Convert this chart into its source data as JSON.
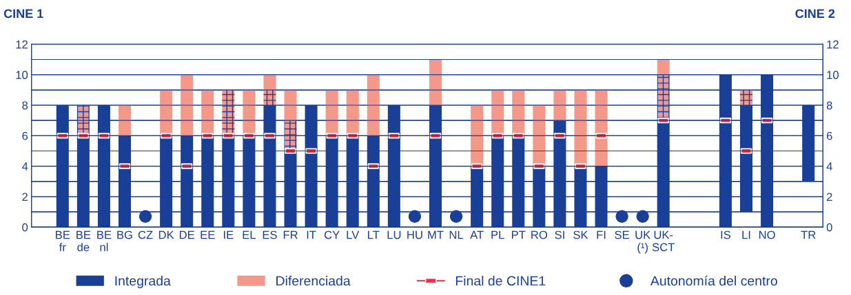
{
  "chart_data": {
    "type": "bar",
    "stacked": true,
    "ylabel": "CINE 1",
    "y2label": "CINE 2",
    "categories": [
      "BE\nfr",
      "BE\nde",
      "BE\nnl",
      "BG",
      "CZ",
      "DK",
      "DE",
      "EE",
      "IE",
      "EL",
      "ES",
      "FR",
      "IT",
      "CY",
      "LV",
      "LT",
      "LU",
      "HU",
      "MT",
      "NL",
      "AT",
      "PL",
      "PT",
      "RO",
      "SI",
      "SK",
      "FI",
      "SE",
      "UK\n(¹)",
      "UK-\nSCT",
      null,
      null,
      "IS",
      "LI",
      "NO",
      null,
      "TR"
    ],
    "series": [
      {
        "name": "Integrada",
        "color": "#1a3f96",
        "base": [
          0,
          0,
          0,
          0,
          null,
          0,
          0,
          0,
          0,
          0,
          0,
          0,
          0,
          0,
          0,
          0,
          0,
          null,
          0,
          null,
          0,
          0,
          0,
          0,
          0,
          0,
          0,
          null,
          null,
          0,
          null,
          null,
          0,
          1,
          0,
          null,
          3
        ],
        "values": [
          8,
          6,
          8,
          6,
          null,
          6,
          6,
          6,
          6,
          6,
          8,
          5,
          8,
          6,
          6,
          6,
          8,
          null,
          8,
          null,
          4,
          6,
          6,
          4,
          7,
          4,
          4,
          null,
          null,
          7,
          null,
          null,
          10,
          7,
          10,
          null,
          5
        ]
      },
      {
        "color": "#f4998a",
        "values": [
          null,
          2,
          null,
          null,
          null,
          null,
          null,
          null,
          3,
          null,
          1,
          2,
          null,
          null,
          null,
          null,
          null,
          null,
          null,
          null,
          null,
          null,
          null,
          null,
          null,
          null,
          null,
          null,
          null,
          3,
          null,
          null,
          null,
          1,
          null,
          null,
          null
        ]
      },
      {
        "name": "Diferenciada",
        "color": "#f4998a",
        "values": [
          null,
          null,
          null,
          2,
          null,
          3,
          4,
          3,
          null,
          3,
          1,
          2,
          null,
          3,
          3,
          4,
          null,
          null,
          3,
          null,
          4,
          3,
          3,
          4,
          2,
          5,
          5,
          null,
          null,
          1,
          null,
          null,
          null,
          null,
          null,
          null,
          null
        ]
      },
      {
        "name": "Final de CINE1",
        "type": "scatter",
        "marker": "square",
        "color": "#e8304a",
        "values": [
          6,
          6,
          6,
          4,
          null,
          6,
          4,
          6,
          6,
          6,
          6,
          5,
          5,
          6,
          6,
          4,
          6,
          null,
          6,
          null,
          4,
          6,
          6,
          4,
          6,
          4,
          6,
          null,
          null,
          7,
          null,
          null,
          7,
          5,
          7,
          null,
          null
        ]
      },
      {
        "name": "Autonomía del centro",
        "type": "scatter",
        "marker": "circle",
        "color": "#1a3f96",
        "values": [
          null,
          null,
          null,
          null,
          0.7,
          null,
          null,
          null,
          null,
          null,
          null,
          null,
          null,
          null,
          null,
          null,
          null,
          0.7,
          null,
          0.7,
          null,
          null,
          null,
          null,
          null,
          null,
          null,
          0.7,
          0.7,
          null,
          null,
          null,
          null,
          null,
          null,
          null,
          null
        ]
      }
    ],
    "ylim": [
      0,
      12
    ],
    "yticks": [
      0,
      {
        "value": 1,
        "label": null
      },
      2,
      {
        "value": 3,
        "label": null
      },
      4,
      {
        "value": 5,
        "label": null
      },
      6,
      {
        "value": 7,
        "label": null
      },
      8,
      {
        "value": 9,
        "label": null
      },
      10,
      {
        "value": 11,
        "label": null
      },
      12
    ],
    "y2lim": [
      0,
      12
    ],
    "y2ticks": [
      0,
      {
        "value": 1,
        "label": null
      },
      2,
      {
        "value": 3,
        "label": null
      },
      4,
      {
        "value": 5,
        "label": null
      },
      6,
      {
        "value": 7,
        "label": null
      },
      8,
      {
        "value": 9,
        "label": null
      },
      10,
      {
        "value": 11,
        "label": null
      },
      12
    ],
    "grid": "y",
    "legend": "bottom"
  }
}
